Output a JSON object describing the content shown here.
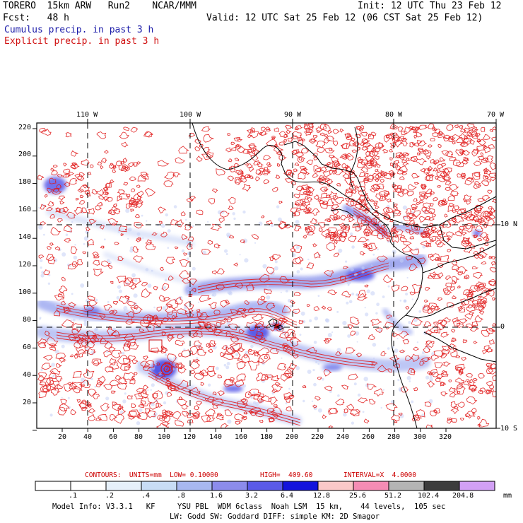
{
  "header": {
    "model": "TORERO  15km ARW   Run2    NCAR/MMM",
    "init": "Init: 12 UTC Thu 23 Feb 12",
    "fcst": "Fcst:   48 h",
    "valid": "Valid: 12 UTC Sat 25 Feb 12 (06 CST Sat 25 Feb 12)",
    "cumulus": "Cumulus precip. in past 3 h",
    "explicit": "Explicit precip. in past 3 h"
  },
  "axes": {
    "top_lon": [
      "110 W",
      "100 W",
      "90 W",
      "80 W",
      "70 W"
    ],
    "right_lat": [
      "10 N",
      "0",
      "10 S"
    ],
    "left_y": [
      "220",
      "200",
      "180",
      "160",
      "140",
      "120",
      "100",
      "80",
      "60",
      "40",
      "20"
    ],
    "bottom_x": [
      "20",
      "40",
      "60",
      "80",
      "100",
      "120",
      "140",
      "160",
      "180",
      "200",
      "220",
      "240",
      "260",
      "280",
      "300",
      "320"
    ]
  },
  "contour_info": {
    "label": "CONTOURS:  UNITS=mm  LOW= 0.10000",
    "high": "HIGH=  409.60",
    "interval": "INTERVAL=X  4.0000"
  },
  "colorbar": {
    "labels": [
      ".1",
      ".2",
      ".4",
      ".8",
      "1.6",
      "3.2",
      "6.4",
      "12.8",
      "25.6",
      "51.2",
      "102.4",
      "204.8"
    ],
    "colors": [
      "#ffffff",
      "#ffffff",
      "#e6f0fa",
      "#c8dcf5",
      "#a8b8f0",
      "#8c8ceb",
      "#5a5ae8",
      "#1414dc",
      "#fac8c8",
      "#f58cb4",
      "#b4b4b4",
      "#3c3c3c",
      "#d2a0f5"
    ],
    "units": "mm"
  },
  "footer": {
    "line1": "Model Info: V3.3.1   KF     YSU PBL  WDM 6class  Noah LSM  15 km,    44 levels,  105 sec",
    "line2": "LW: Godd SW: Goddard DIFF: simple KM: 2D Smagor"
  },
  "colors": {
    "cumulus": "#4646e6",
    "explicit": "#e01414",
    "coast": "#000000"
  }
}
